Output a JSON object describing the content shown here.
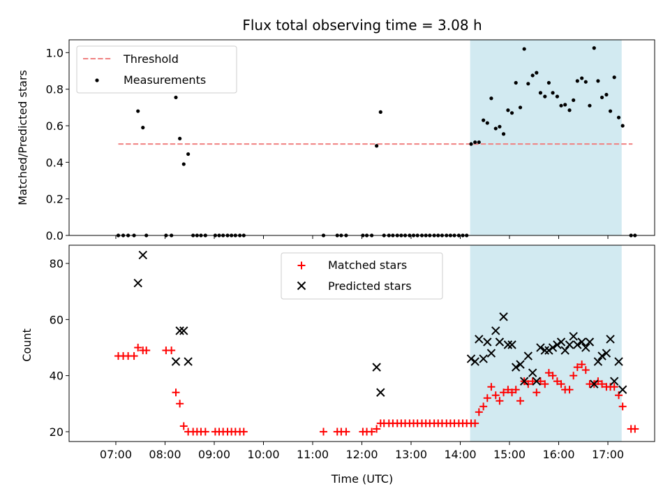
{
  "chart_data": [
    {
      "type": "scatter",
      "title": "Flux total observing time = 3.08 h",
      "xlabel": "",
      "ylabel": "Matched/Predicted stars",
      "ylim": [
        0,
        1.07
      ],
      "xlim_hours": [
        6.05,
        17.95
      ],
      "yticks": [
        0.0,
        0.2,
        0.4,
        0.6,
        0.8,
        1.0
      ],
      "ytick_labels": [
        "0.0",
        "0.2",
        "0.4",
        "0.6",
        "0.8",
        "1.0"
      ],
      "xtick_labels_visible": false,
      "shaded_window_hours": [
        14.2,
        17.28
      ],
      "shade_color": "#add8e6",
      "legend_position": "upper left",
      "threshold": {
        "name": "Threshold",
        "value": 0.5,
        "x_range_hours": [
          7.05,
          17.5
        ],
        "color": "#f08080",
        "style": "dashed"
      },
      "series": [
        {
          "name": "Measurements",
          "color": "#000000",
          "marker": "dot",
          "x_hours": [
            7.05,
            7.15,
            7.25,
            7.37,
            7.45,
            7.55,
            7.62,
            8.02,
            8.13,
            8.22,
            8.3,
            8.38,
            8.47,
            8.57,
            8.65,
            8.73,
            8.82,
            9.02,
            9.1,
            9.18,
            9.27,
            9.35,
            9.43,
            9.52,
            9.6,
            11.22,
            11.5,
            11.58,
            11.68,
            12.02,
            12.1,
            12.2,
            12.3,
            12.38,
            12.45,
            12.55,
            12.63,
            12.72,
            12.8,
            12.88,
            12.97,
            13.05,
            13.13,
            13.22,
            13.3,
            13.38,
            13.47,
            13.55,
            13.63,
            13.72,
            13.8,
            13.88,
            13.97,
            14.05,
            14.13,
            14.22,
            14.3,
            14.38,
            14.47,
            14.55,
            14.63,
            14.72,
            14.8,
            14.88,
            14.97,
            15.05,
            15.13,
            15.22,
            15.3,
            15.38,
            15.47,
            15.55,
            15.63,
            15.72,
            15.8,
            15.88,
            15.97,
            16.05,
            16.13,
            16.22,
            16.3,
            16.38,
            16.47,
            16.55,
            16.63,
            16.72,
            16.8,
            16.88,
            16.97,
            17.05,
            17.13,
            17.22,
            17.3,
            17.47,
            17.55
          ],
          "values": [
            0,
            0,
            0,
            0,
            0.68,
            0.59,
            0,
            0,
            0,
            0.755,
            0.53,
            0.39,
            0.445,
            0,
            0,
            0,
            0,
            0,
            0,
            0,
            0,
            0,
            0,
            0,
            0,
            0,
            0,
            0,
            0,
            0,
            0,
            0,
            0.49,
            0.675,
            0,
            0,
            0,
            0,
            0,
            0,
            0,
            0,
            0,
            0,
            0,
            0,
            0,
            0,
            0,
            0,
            0,
            0,
            0,
            0,
            0,
            0.5,
            0.51,
            0.51,
            0.63,
            0.615,
            0.75,
            0.585,
            0.595,
            0.555,
            0.685,
            0.67,
            0.835,
            0.7,
            1.02,
            0.83,
            0.875,
            0.89,
            0.78,
            0.76,
            0.835,
            0.78,
            0.76,
            0.71,
            0.715,
            0.685,
            0.74,
            0.845,
            0.86,
            0.84,
            0.71,
            1.025,
            0.845,
            0.755,
            0.77,
            0.68,
            0.865,
            0.645,
            0.6,
            0,
            0
          ]
        }
      ]
    },
    {
      "type": "scatter",
      "title": "",
      "xlabel": "Time (UTC)",
      "ylabel": "Count",
      "ylim": [
        16.5,
        86.5
      ],
      "xlim_hours": [
        6.05,
        17.95
      ],
      "yticks": [
        20,
        40,
        60,
        80
      ],
      "ytick_labels": [
        "20",
        "40",
        "60",
        "80"
      ],
      "xticks_hours": [
        7,
        8,
        9,
        10,
        11,
        12,
        13,
        14,
        15,
        16,
        17
      ],
      "xtick_labels": [
        "07:00",
        "08:00",
        "09:00",
        "10:00",
        "11:00",
        "12:00",
        "13:00",
        "14:00",
        "15:00",
        "16:00",
        "17:00"
      ],
      "shaded_window_hours": [
        14.2,
        17.28
      ],
      "shade_color": "#add8e6",
      "legend_position": "upper center",
      "series": [
        {
          "name": "Matched stars",
          "color": "#ff0000",
          "marker": "plus",
          "x_hours": [
            7.05,
            7.15,
            7.25,
            7.37,
            7.45,
            7.55,
            7.62,
            8.02,
            8.13,
            8.22,
            8.3,
            8.38,
            8.47,
            8.57,
            8.65,
            8.73,
            8.82,
            9.02,
            9.1,
            9.18,
            9.27,
            9.35,
            9.43,
            9.52,
            9.6,
            11.22,
            11.5,
            11.58,
            11.68,
            12.02,
            12.1,
            12.2,
            12.3,
            12.38,
            12.45,
            12.55,
            12.63,
            12.72,
            12.8,
            12.88,
            12.97,
            13.05,
            13.13,
            13.22,
            13.3,
            13.38,
            13.47,
            13.55,
            13.63,
            13.72,
            13.8,
            13.88,
            13.97,
            14.05,
            14.13,
            14.22,
            14.3,
            14.38,
            14.47,
            14.55,
            14.63,
            14.72,
            14.8,
            14.88,
            14.97,
            15.05,
            15.13,
            15.22,
            15.3,
            15.38,
            15.47,
            15.55,
            15.63,
            15.72,
            15.8,
            15.88,
            15.97,
            16.05,
            16.13,
            16.22,
            16.3,
            16.38,
            16.47,
            16.55,
            16.63,
            16.72,
            16.8,
            16.88,
            16.97,
            17.05,
            17.13,
            17.22,
            17.3,
            17.47,
            17.55
          ],
          "values": [
            47,
            47,
            47,
            47,
            50,
            49,
            49,
            49,
            49,
            34,
            30,
            22,
            20,
            20,
            20,
            20,
            20,
            20,
            20,
            20,
            20,
            20,
            20,
            20,
            20,
            20,
            20,
            20,
            20,
            20,
            20,
            20,
            21,
            23,
            23,
            23,
            23,
            23,
            23,
            23,
            23,
            23,
            23,
            23,
            23,
            23,
            23,
            23,
            23,
            23,
            23,
            23,
            23,
            23,
            23,
            23,
            23,
            27,
            29,
            32,
            36,
            33,
            31,
            34,
            35,
            34,
            35,
            31,
            38,
            37,
            38,
            34,
            38,
            37,
            41,
            40,
            38,
            37,
            35,
            35,
            40,
            43,
            44,
            42,
            37,
            37,
            38,
            37,
            36,
            36,
            36,
            33,
            29,
            21,
            21
          ]
        },
        {
          "name": "Predicted stars",
          "color": "#000000",
          "marker": "x",
          "x_hours": [
            7.45,
            7.55,
            8.22,
            8.3,
            8.38,
            8.47,
            12.3,
            12.38,
            14.22,
            14.3,
            14.38,
            14.47,
            14.55,
            14.63,
            14.72,
            14.8,
            14.88,
            14.97,
            15.05,
            15.13,
            15.22,
            15.3,
            15.38,
            15.47,
            15.55,
            15.63,
            15.72,
            15.8,
            15.88,
            15.97,
            16.05,
            16.13,
            16.22,
            16.3,
            16.38,
            16.47,
            16.55,
            16.63,
            16.72,
            16.8,
            16.88,
            16.97,
            17.05,
            17.13,
            17.22,
            17.3
          ],
          "values": [
            73,
            83,
            45,
            56,
            56,
            45,
            43,
            34,
            46,
            45,
            53,
            46,
            52,
            48,
            56,
            52,
            61,
            51,
            51,
            43,
            44,
            38,
            47,
            41,
            38,
            50,
            49,
            49,
            50,
            51,
            52,
            49,
            51,
            54,
            51,
            52,
            50,
            52,
            37,
            45,
            47,
            48,
            53,
            38,
            45,
            35
          ]
        }
      ]
    }
  ]
}
